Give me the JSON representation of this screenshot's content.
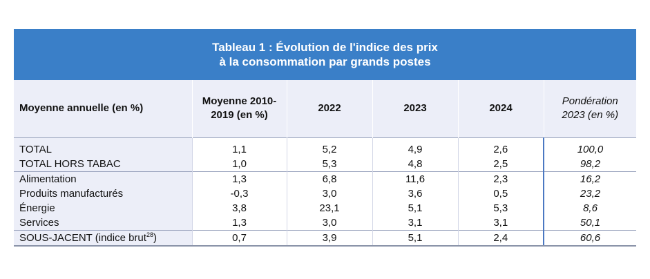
{
  "table": {
    "title_line1": "Tableau 1 : Évolution de l'indice des prix",
    "title_line2": "à la consommation par grands postes",
    "headers": {
      "label": "Moyenne annuelle (en %)",
      "avg_line1": "Moyenne 2010-",
      "avg_line2": "2019 (en %)",
      "y2022": "2022",
      "y2023": "2023",
      "y2024": "2024",
      "weight_line1": "Pondération",
      "weight_line2": "2023 (en %)"
    },
    "rows": [
      {
        "label": "TOTAL",
        "avg": "1,1",
        "y2022": "5,2",
        "y2023": "4,9",
        "y2024": "2,6",
        "weight": "100,0"
      },
      {
        "label": "TOTAL HORS TABAC",
        "avg": "1,0",
        "y2022": "5,3",
        "y2023": "4,8",
        "y2024": "2,5",
        "weight": "98,2"
      },
      {
        "label": "Alimentation",
        "avg": "1,3",
        "y2022": "6,8",
        "y2023": "11,6",
        "y2024": "2,3",
        "weight": "16,2"
      },
      {
        "label": "Produits manufacturés",
        "avg": "-0,3",
        "y2022": "3,0",
        "y2023": "3,6",
        "y2024": "0,5",
        "weight": "23,2"
      },
      {
        "label": "Énergie",
        "avg": "3,8",
        "y2022": "23,1",
        "y2023": "5,1",
        "y2024": "5,3",
        "weight": "8,6"
      },
      {
        "label": "Services",
        "avg": "1,3",
        "y2022": "3,0",
        "y2023": "3,1",
        "y2024": "3,1",
        "weight": "50,1"
      },
      {
        "label": "SOUS-JACENT (indice brut",
        "footnote": "28",
        "label_suffix": ")",
        "avg": "0,7",
        "y2022": "3,9",
        "y2023": "5,1",
        "y2024": "2,4",
        "weight": "60,6"
      }
    ]
  },
  "colors": {
    "banner": "#3a7fc8",
    "header_bg": "#eceef8",
    "weight_divider": "#4b78c2"
  }
}
